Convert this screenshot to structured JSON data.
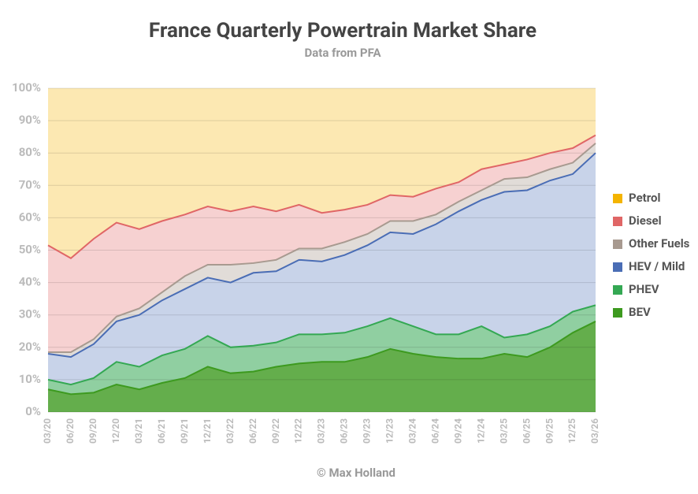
{
  "chart_data": {
    "type": "stacked_area",
    "title": "France Quarterly Powertrain Market Share",
    "subtitle": "Data from PFA",
    "annotation": "© Max Holland",
    "categories": [
      "03/20",
      "06/20",
      "09/20",
      "12/20",
      "03/21",
      "06/21",
      "09/21",
      "12/21",
      "03/22",
      "06/22",
      "09/22",
      "12/22",
      "03/23",
      "06/23",
      "09/23",
      "12/23",
      "03/24",
      "06/24",
      "09/24",
      "12/24",
      "03/25",
      "06/25",
      "09/25",
      "12/25",
      "03/26"
    ],
    "series": [
      {
        "name": "BEV",
        "color": "#3d9a1f",
        "values": [
          7,
          5.5,
          6,
          8.5,
          7,
          9,
          10.5,
          14,
          12,
          12.5,
          14,
          15,
          15.5,
          15.5,
          17,
          19.5,
          18,
          17,
          16.5,
          16.5,
          18,
          17,
          20,
          24.5,
          28
        ]
      },
      {
        "name": "PHEV",
        "color": "#34a853",
        "values": [
          3,
          3,
          4.5,
          7,
          7,
          8.5,
          9,
          9.5,
          8,
          8,
          7.5,
          9,
          8.5,
          9,
          9.5,
          9.5,
          8.5,
          7,
          7.5,
          10,
          5,
          7,
          6.5,
          6.5,
          5
        ]
      },
      {
        "name": "HEV / Mild",
        "color": "#4a6db5",
        "values": [
          8,
          8.5,
          10.5,
          12.5,
          16,
          17,
          18.5,
          18,
          20,
          22.5,
          22,
          23,
          22.5,
          24,
          25,
          26.5,
          28.5,
          34,
          38,
          39,
          45,
          44.5,
          45,
          42.5,
          47
        ]
      },
      {
        "name": "Other Fuels",
        "color": "#a89a90",
        "values": [
          0.5,
          1.5,
          1.5,
          1.5,
          2,
          2.5,
          4,
          4,
          5.5,
          3,
          3.5,
          3.5,
          4,
          4,
          3.5,
          3.5,
          4,
          3,
          3,
          3,
          4,
          4,
          3.5,
          3.5,
          3
        ]
      },
      {
        "name": "Diesel",
        "color": "#e06666",
        "values": [
          33,
          29,
          31,
          29,
          24.5,
          22,
          19,
          18,
          16.5,
          17.5,
          15,
          13.5,
          11,
          10,
          9,
          8,
          7.5,
          8,
          6,
          6.5,
          4.5,
          5.5,
          5,
          4.5,
          2.5
        ]
      },
      {
        "name": "Petrol",
        "color": "#f4b400",
        "values": [
          48.5,
          52.5,
          46.5,
          41.5,
          43.5,
          41,
          39,
          36.5,
          38,
          36.5,
          38,
          36,
          38.5,
          37.5,
          36,
          33,
          33.5,
          31,
          29,
          25,
          23.5,
          22,
          20,
          18.5,
          14.5
        ]
      }
    ],
    "ylim": [
      0,
      100
    ],
    "yticks": [
      {
        "value": 0,
        "label": "0%"
      },
      {
        "value": 10,
        "label": "10%"
      },
      {
        "value": 20,
        "label": "20%"
      },
      {
        "value": 30,
        "label": "30%"
      },
      {
        "value": 40,
        "label": "40%"
      },
      {
        "value": 50,
        "label": "50%"
      },
      {
        "value": 60,
        "label": "60%"
      },
      {
        "value": 70,
        "label": "70%"
      },
      {
        "value": 80,
        "label": "80%"
      },
      {
        "value": 90,
        "label": "90%"
      },
      {
        "value": 100,
        "label": "100%"
      }
    ],
    "grid": true,
    "legend": "right"
  }
}
